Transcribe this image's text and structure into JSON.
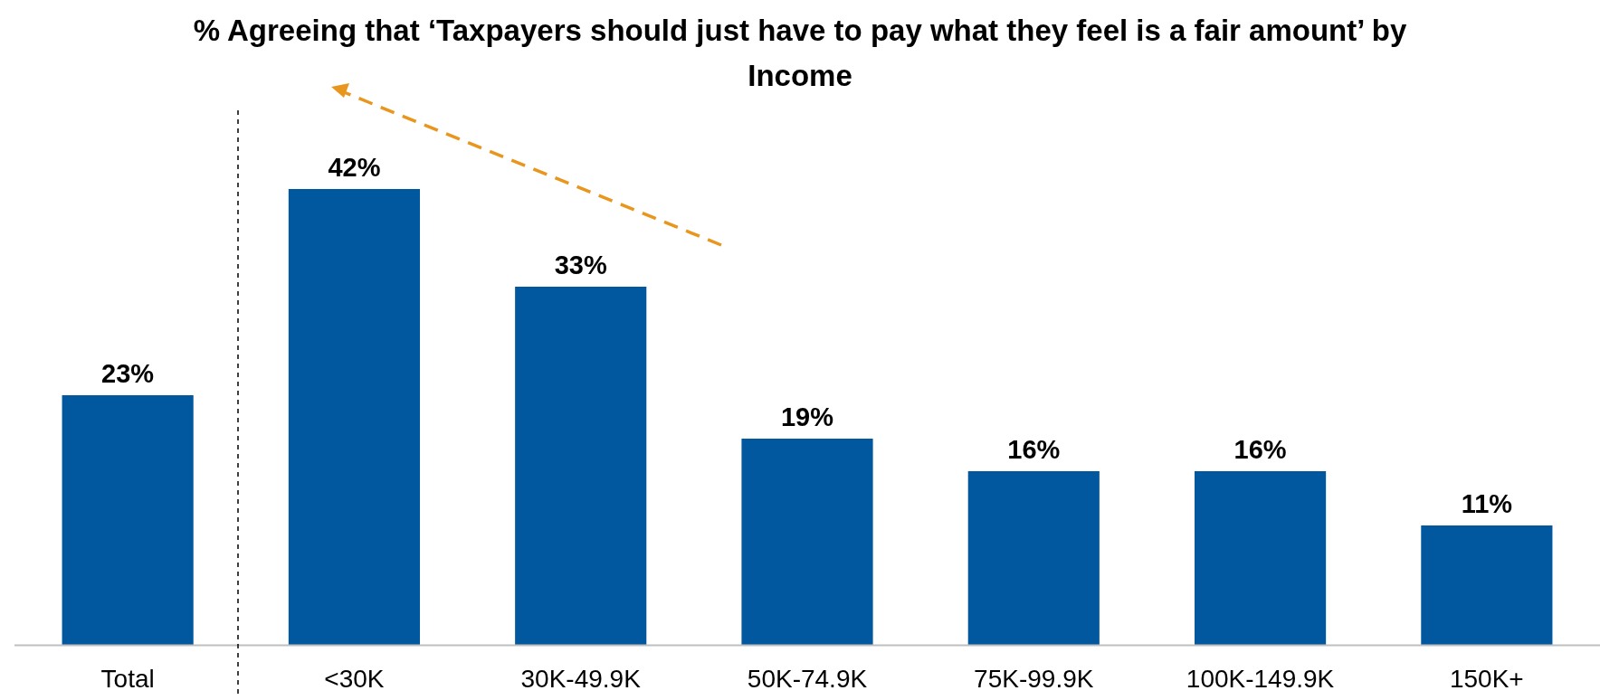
{
  "chart_data": {
    "type": "bar",
    "title": "% Agreeing that ‘Taxpayers should just have to pay what they feel is a fair amount’ by Income",
    "categories": [
      "Total",
      "<30K",
      "30K-49.9K",
      "50K-74.9K",
      "75K-99.9K",
      "100K-149.9K",
      "150K+"
    ],
    "values": [
      23,
      42,
      33,
      19,
      16,
      16,
      11
    ],
    "value_labels": [
      "23%",
      "42%",
      "33%",
      "19%",
      "16%",
      "16%",
      "11%"
    ],
    "color": "#02589e"
  }
}
